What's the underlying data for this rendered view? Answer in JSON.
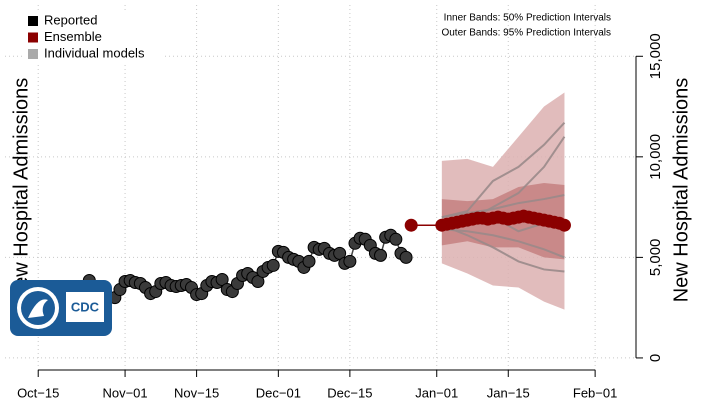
{
  "chart_data": {
    "type": "line",
    "y_label": "New Hospital Admissions",
    "annotations": [
      "Inner Bands: 50% Prediction Intervals",
      "Outer Bands: 95% Prediction Intervals"
    ],
    "logo_text": "CDC",
    "xlim": [
      -6.5,
      117
    ],
    "xticks": [
      {
        "value": 0,
        "label": "Oct−15"
      },
      {
        "value": 17,
        "label": "Nov−01"
      },
      {
        "value": 31,
        "label": "Nov−15"
      },
      {
        "value": 47,
        "label": "Dec−01"
      },
      {
        "value": 61,
        "label": "Dec−15"
      },
      {
        "value": 78,
        "label": "Jan−01"
      },
      {
        "value": 92,
        "label": "Jan−15"
      },
      {
        "value": 109,
        "label": "Feb−01"
      }
    ],
    "ylim": [
      -600,
      17550
    ],
    "yticks": [
      0,
      {
        "value": 5000,
        "label": "5,000"
      },
      {
        "value": 10000,
        "label": "10,000"
      },
      {
        "value": 15000,
        "label": "15,000"
      }
    ],
    "grid": true,
    "legend": "top-left",
    "series": [
      {
        "name": "Reported",
        "color": "#000000",
        "x": [
          10,
          15,
          16,
          17,
          18,
          19,
          20,
          21,
          22,
          23,
          24,
          25,
          26,
          27,
          28,
          29,
          30,
          31,
          32,
          33,
          34,
          35,
          36,
          37,
          38,
          39,
          40,
          41,
          42,
          43,
          44,
          45,
          46,
          47,
          48,
          49,
          50,
          51,
          52,
          53,
          54,
          55,
          56,
          57,
          58,
          59,
          60,
          61,
          62,
          63,
          64,
          65,
          66,
          67,
          68,
          69,
          70,
          71,
          72
        ],
        "values": [
          3850,
          3000,
          3400,
          3800,
          3850,
          3750,
          3700,
          3500,
          3200,
          3300,
          3700,
          3750,
          3600,
          3550,
          3600,
          3650,
          3500,
          3150,
          3200,
          3600,
          3800,
          3750,
          3900,
          3400,
          3300,
          3700,
          4100,
          4200,
          4000,
          3800,
          4300,
          4500,
          4600,
          5300,
          5250,
          5000,
          4900,
          4800,
          4500,
          4800,
          5500,
          5400,
          5450,
          5200,
          5100,
          5200,
          4700,
          4800,
          5700,
          5950,
          5900,
          5600,
          5200,
          5100,
          6000,
          6100,
          5900,
          5200,
          5000
        ]
      },
      {
        "name": "Ensemble",
        "color": "#8b0000",
        "x": [
          73,
          79,
          80,
          81,
          82,
          83,
          84,
          85,
          86,
          87,
          88,
          89,
          90,
          91,
          92,
          93,
          94,
          95,
          96,
          97,
          98,
          99,
          100,
          101,
          102,
          103
        ],
        "values": [
          6600,
          6600,
          6650,
          6700,
          6750,
          6800,
          6850,
          6900,
          6950,
          6950,
          6900,
          6950,
          7000,
          6950,
          6900,
          6950,
          7000,
          7050,
          7000,
          6950,
          6900,
          6850,
          6800,
          6750,
          6700,
          6600
        ]
      },
      {
        "name": "Individual models",
        "color": "#9a8a8a",
        "x": [
          79,
          84,
          89,
          94,
          99,
          103
        ],
        "models": [
          [
            7000,
            7300,
            8800,
            9500,
            10600,
            11700
          ],
          [
            7000,
            7200,
            7400,
            7700,
            7900,
            8100
          ],
          [
            6600,
            6100,
            5500,
            4800,
            4400,
            4300
          ],
          [
            6400,
            6300,
            6100,
            5800,
            5400,
            5000
          ],
          [
            6500,
            6800,
            7500,
            8200,
            9500,
            11000
          ],
          [
            6700,
            7000,
            7000,
            6300,
            6700,
            6500
          ]
        ]
      }
    ],
    "intervals": {
      "x": [
        79,
        84,
        89,
        94,
        99,
        103
      ],
      "upper_95": [
        9800,
        9900,
        9500,
        11000,
        12500,
        13200
      ],
      "lower_95": [
        4700,
        4200,
        3600,
        3500,
        2800,
        2400
      ],
      "upper_50": [
        7900,
        7800,
        7900,
        8500,
        8700,
        8600
      ],
      "lower_50": [
        5600,
        5800,
        5500,
        5500,
        5000,
        4900
      ],
      "color_95": "#dcb0b0",
      "color_50": "#c07878"
    }
  }
}
